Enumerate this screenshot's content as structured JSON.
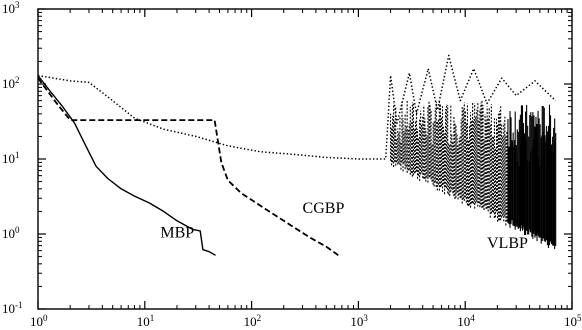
{
  "chart_data": {
    "type": "line",
    "title": "",
    "xlabel": "",
    "ylabel": "",
    "xscale": "log",
    "yscale": "log",
    "xlim": [
      1,
      100000
    ],
    "ylim": [
      0.1,
      1000
    ],
    "grid": false,
    "x_ticks": [
      {
        "base": "10",
        "exp": "0"
      },
      {
        "base": "10",
        "exp": "1"
      },
      {
        "base": "10",
        "exp": "2"
      },
      {
        "base": "10",
        "exp": "3"
      },
      {
        "base": "10",
        "exp": "4"
      },
      {
        "base": "10",
        "exp": "5"
      }
    ],
    "y_ticks": [
      {
        "base": "10",
        "exp": "-1"
      },
      {
        "base": "10",
        "exp": "0"
      },
      {
        "base": "10",
        "exp": "1"
      },
      {
        "base": "10",
        "exp": "2"
      },
      {
        "base": "10",
        "exp": "3"
      }
    ],
    "series": [
      {
        "name": "MBP",
        "style": "solid",
        "color": "#000000",
        "points": [
          [
            1,
            130
          ],
          [
            1.3,
            80
          ],
          [
            1.7,
            50
          ],
          [
            2.2,
            30
          ],
          [
            2.8,
            15
          ],
          [
            3.5,
            8
          ],
          [
            4.5,
            5.5
          ],
          [
            6,
            4
          ],
          [
            8,
            3.2
          ],
          [
            11,
            2.6
          ],
          [
            15,
            2.0
          ],
          [
            20,
            1.5
          ],
          [
            28,
            1.15
          ],
          [
            33,
            1.1
          ],
          [
            35,
            0.62
          ],
          [
            40,
            0.58
          ],
          [
            46,
            0.52
          ]
        ]
      },
      {
        "name": "CGBP",
        "style": "dashed",
        "color": "#000000",
        "points": [
          [
            1,
            120
          ],
          [
            1.5,
            55
          ],
          [
            2,
            33
          ],
          [
            3,
            33
          ],
          [
            5,
            33
          ],
          [
            10,
            33
          ],
          [
            20,
            33
          ],
          [
            45,
            33
          ],
          [
            52,
            9
          ],
          [
            60,
            5.2
          ],
          [
            80,
            3.5
          ],
          [
            120,
            2.4
          ],
          [
            200,
            1.5
          ],
          [
            350,
            0.9
          ],
          [
            500,
            0.68
          ],
          [
            650,
            0.52
          ]
        ]
      },
      {
        "name": "VLBP",
        "style": "dotted",
        "color": "#000000",
        "points": [
          [
            1,
            130
          ],
          [
            2,
            110
          ],
          [
            3,
            105
          ],
          [
            5,
            60
          ],
          [
            8,
            35
          ],
          [
            15,
            25
          ],
          [
            30,
            20
          ],
          [
            60,
            15
          ],
          [
            120,
            12.5
          ],
          [
            250,
            11.5
          ],
          [
            500,
            10.5
          ],
          [
            1000,
            10
          ],
          [
            1800,
            10
          ],
          [
            2000,
            130
          ],
          [
            2300,
            30
          ],
          [
            3000,
            140
          ],
          [
            3500,
            40
          ],
          [
            4500,
            160
          ],
          [
            5500,
            45
          ],
          [
            7000,
            240
          ],
          [
            9000,
            60
          ],
          [
            12000,
            160
          ],
          [
            16000,
            55
          ],
          [
            22000,
            120
          ],
          [
            30000,
            70
          ],
          [
            45000,
            110
          ],
          [
            70000,
            60
          ]
        ]
      }
    ],
    "annotations": [
      {
        "text": "MBP",
        "x": 14,
        "y": 0.9
      },
      {
        "text": "CGBP",
        "x": 300,
        "y": 1.9
      },
      {
        "text": "VLBP",
        "x": 16000,
        "y": 0.65
      }
    ]
  }
}
